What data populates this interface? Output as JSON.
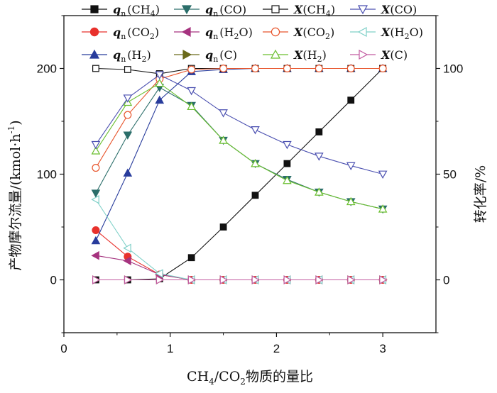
{
  "chart_data": {
    "type": "line",
    "title": "",
    "xlabel": "CH4/CO2物质的量比",
    "xlabel_parts": {
      "a": "CH",
      "a_sub": "4",
      "b": "/CO",
      "b_sub": "2",
      "c": "物质的量比"
    },
    "ylabel_left": "产物摩尔流量/(kmol·h⁻¹)",
    "ylabel_left_parts": {
      "a": "产物摩尔流量/(kmol·h",
      "sup": "-1",
      "c": ")"
    },
    "ylabel_right": "转化率/%",
    "xlim": [
      0,
      3.5
    ],
    "ylim_left": [
      -50,
      250
    ],
    "ylim_right": [
      -25,
      125
    ],
    "x_ticks": [
      0,
      1,
      2,
      3
    ],
    "x_tick_labels": [
      "0",
      "1",
      "2",
      "3"
    ],
    "y_left_ticks": [
      0,
      100,
      200
    ],
    "y_left_tick_labels": [
      "0",
      "100",
      "200"
    ],
    "y_right_ticks": [
      0,
      50,
      100
    ],
    "y_right_tick_labels": [
      "0",
      "50",
      "100"
    ],
    "grid": false,
    "legend_position": "top",
    "series": [
      {
        "name": "qn(CH4)",
        "label_var": "q",
        "label_sub": "n",
        "label_body": "(CH",
        "label_body_sub": "4",
        "label_end": ")",
        "axis": "left",
        "color": "#111111",
        "marker": "square",
        "filled": true,
        "x": [
          0.3,
          0.6,
          0.9,
          1.2,
          1.5,
          1.8,
          2.1,
          2.4,
          2.7,
          3.0
        ],
        "values": [
          0,
          0,
          1,
          21,
          50,
          80,
          110,
          140,
          170,
          200
        ]
      },
      {
        "name": "qn(CO2)",
        "label_var": "q",
        "label_sub": "n",
        "label_body": "(CO",
        "label_body_sub": "2",
        "label_end": ")",
        "axis": "left",
        "color": "#e8312c",
        "marker": "circle",
        "filled": true,
        "x": [
          0.3,
          0.6,
          0.9,
          1.2,
          1.5,
          1.8,
          2.1,
          2.4,
          2.7,
          3.0
        ],
        "values": [
          47,
          22,
          5,
          0,
          0,
          0,
          0,
          0,
          0,
          0
        ]
      },
      {
        "name": "qn(H2)",
        "label_var": "q",
        "label_sub": "n",
        "label_body": "(H",
        "label_body_sub": "2",
        "label_end": ")",
        "axis": "left",
        "color": "#283c9c",
        "marker": "triangle-up",
        "filled": true,
        "x": [
          0.3,
          0.6,
          0.9,
          1.2,
          1.5,
          1.8,
          2.1,
          2.4,
          2.7,
          3.0
        ],
        "values": [
          37,
          101,
          170,
          197,
          199,
          200,
          200,
          200,
          200,
          200
        ]
      },
      {
        "name": "qn(CO)",
        "label_var": "q",
        "label_sub": "n",
        "label_body": "(CO",
        "label_body_sub": "",
        "label_end": ")",
        "axis": "left",
        "color": "#2b6e6a",
        "marker": "triangle-down",
        "filled": true,
        "x": [
          0.3,
          0.6,
          0.9,
          1.2,
          1.5,
          1.8,
          2.1,
          2.4,
          2.7,
          3.0
        ],
        "values": [
          82,
          137,
          182,
          165,
          132,
          110,
          95,
          83,
          74,
          67
        ]
      },
      {
        "name": "qn(H2O)",
        "label_var": "q",
        "label_sub": "n",
        "label_body": "(H",
        "label_body_sub": "2",
        "label_end": "O)",
        "axis": "left",
        "color": "#a6337f",
        "marker": "triangle-left",
        "filled": true,
        "x": [
          0.3,
          0.6,
          0.9,
          1.2,
          1.5,
          1.8,
          2.1,
          2.4,
          2.7,
          3.0
        ],
        "values": [
          23,
          18,
          5,
          0,
          0,
          0,
          0,
          0,
          0,
          0
        ]
      },
      {
        "name": "qn(C)",
        "label_var": "q",
        "label_sub": "n",
        "label_body": "(C",
        "label_body_sub": "",
        "label_end": ")",
        "axis": "left",
        "color": "#6b6a1a",
        "marker": "triangle-right",
        "filled": true,
        "x": [
          0.3,
          0.6,
          0.9,
          1.2,
          1.5,
          1.8,
          2.1,
          2.4,
          2.7,
          3.0
        ],
        "values": [
          0,
          0,
          0,
          0,
          0,
          0,
          0,
          0,
          0,
          0
        ]
      },
      {
        "name": "X(CH4)",
        "label_var": "X",
        "label_sub": "",
        "label_body": "(CH",
        "label_body_sub": "4",
        "label_end": ")",
        "axis": "right",
        "color": "#111111",
        "marker": "square",
        "filled": false,
        "x": [
          0.3,
          0.6,
          0.9,
          1.2,
          1.5,
          1.8,
          2.1,
          2.4,
          2.7,
          3.0
        ],
        "values": [
          100,
          99.5,
          97.5,
          100,
          100,
          100,
          100,
          100,
          100,
          100
        ]
      },
      {
        "name": "X(CO2)",
        "label_var": "X",
        "label_sub": "",
        "label_body": "(CO",
        "label_body_sub": "2",
        "label_end": ")",
        "axis": "right",
        "color": "#e8552c",
        "marker": "circle",
        "filled": false,
        "x": [
          0.3,
          0.6,
          0.9,
          1.2,
          1.5,
          1.8,
          2.1,
          2.4,
          2.7,
          3.0
        ],
        "values": [
          53,
          78,
          95,
          99.5,
          100,
          100,
          100,
          100,
          100,
          100
        ]
      },
      {
        "name": "X(H2)",
        "label_var": "X",
        "label_sub": "",
        "label_body": "(H",
        "label_body_sub": "2",
        "label_end": ")",
        "axis": "right",
        "color": "#6abf2f",
        "marker": "triangle-up",
        "filled": false,
        "x": [
          0.3,
          0.6,
          0.9,
          1.2,
          1.5,
          1.8,
          2.1,
          2.4,
          2.7,
          3.0
        ],
        "values": [
          61,
          84,
          93,
          82,
          66,
          55,
          47,
          41.5,
          37,
          33.5
        ]
      },
      {
        "name": "X(CO)",
        "label_var": "X",
        "label_sub": "",
        "label_body": "(CO",
        "label_body_sub": "",
        "label_end": ")",
        "axis": "right",
        "color": "#4a4fb0",
        "marker": "triangle-down",
        "filled": false,
        "x": [
          0.3,
          0.6,
          0.9,
          1.2,
          1.5,
          1.8,
          2.1,
          2.4,
          2.7,
          3.0
        ],
        "values": [
          64,
          86,
          97,
          89.5,
          79,
          71,
          64,
          58.5,
          54,
          50
        ]
      },
      {
        "name": "X(H2O)",
        "label_var": "X",
        "label_sub": "",
        "label_body": "(H",
        "label_body_sub": "2",
        "label_end": "O)",
        "axis": "right",
        "color": "#7fd0c8",
        "marker": "triangle-left",
        "filled": false,
        "x": [
          0.3,
          0.6,
          0.9,
          1.2,
          1.5,
          1.8,
          2.1,
          2.4,
          2.7,
          3.0
        ],
        "values": [
          38,
          15,
          3,
          0,
          0,
          0,
          0,
          0,
          0,
          0
        ]
      },
      {
        "name": "X(C)",
        "label_var": "X",
        "label_sub": "",
        "label_body": "(C",
        "label_body_sub": "",
        "label_end": ")",
        "axis": "right",
        "color": "#c25aa0",
        "marker": "triangle-right",
        "filled": false,
        "x": [
          0.3,
          0.6,
          0.9,
          1.2,
          1.5,
          1.8,
          2.1,
          2.4,
          2.7,
          3.0
        ],
        "values": [
          0,
          0,
          0,
          0,
          0,
          0,
          0,
          0,
          0,
          0
        ]
      }
    ]
  }
}
